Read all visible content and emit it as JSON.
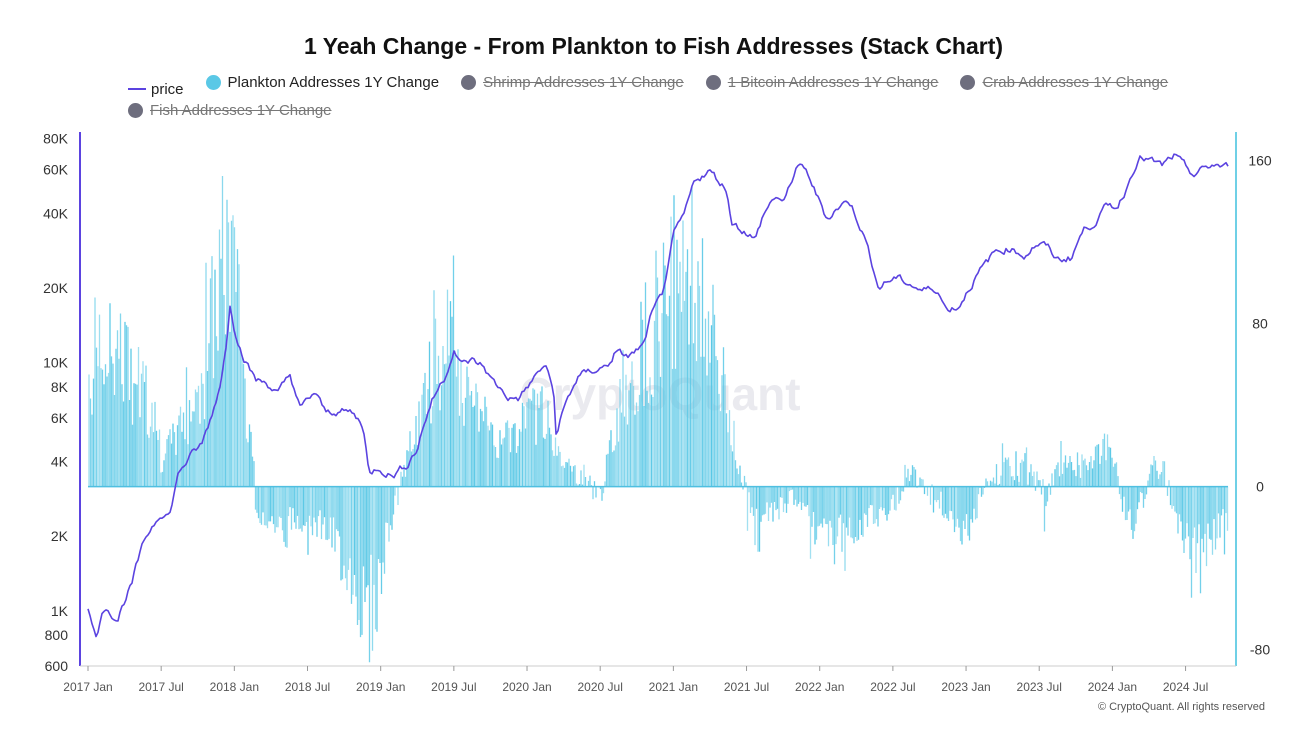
{
  "chart_data": {
    "type": "line",
    "title": "1 Yeah Change - From Plankton to Fish Addresses (Stack Chart)",
    "legend": [
      {
        "name": "price",
        "color": "#5b43e0",
        "marker": "line",
        "visible": true
      },
      {
        "name": "Plankton Addresses 1Y Change",
        "color": "#5ac8e6",
        "marker": "dot",
        "visible": true
      },
      {
        "name": "Shrimp Addresses 1Y Change",
        "color": "#6e6e7e",
        "marker": "dot",
        "visible": false
      },
      {
        "name": "1 Bitcoin Addresses 1Y Change",
        "color": "#6e6e7e",
        "marker": "dot",
        "visible": false
      },
      {
        "name": "Crab Addresses 1Y Change",
        "color": "#6e6e7e",
        "marker": "dot",
        "visible": false
      },
      {
        "name": "Fish Addresses 1Y Change",
        "color": "#6e6e7e",
        "marker": "dot",
        "visible": false
      }
    ],
    "x_ticks": [
      "2017 Jan",
      "2017 Jul",
      "2018 Jan",
      "2018 Jul",
      "2019 Jan",
      "2019 Jul",
      "2020 Jan",
      "2020 Jul",
      "2021 Jan",
      "2021 Jul",
      "2022 Jan",
      "2022 Jul",
      "2023 Jan",
      "2023 Jul",
      "2024 Jan",
      "2024 Jul"
    ],
    "x_range": [
      2017.0,
      2024.79
    ],
    "y_left": {
      "scale": "log",
      "range": [
        600,
        85000
      ],
      "ticks": [
        {
          "v": 600,
          "label": "600"
        },
        {
          "v": 800,
          "label": "800"
        },
        {
          "v": 1000,
          "label": "1K"
        },
        {
          "v": 2000,
          "label": "2K"
        },
        {
          "v": 4000,
          "label": "4K"
        },
        {
          "v": 6000,
          "label": "6K"
        },
        {
          "v": 8000,
          "label": "8K"
        },
        {
          "v": 10000,
          "label": "10K"
        },
        {
          "v": 20000,
          "label": "20K"
        },
        {
          "v": 40000,
          "label": "40K"
        },
        {
          "v": 60000,
          "label": "60K"
        },
        {
          "v": 80000,
          "label": "80K"
        }
      ]
    },
    "y_right": {
      "scale": "linear",
      "range": [
        -88,
        174
      ],
      "ticks": [
        {
          "v": -80,
          "label": "-80"
        },
        {
          "v": 0,
          "label": "0"
        },
        {
          "v": 80,
          "label": "80"
        },
        {
          "v": 160,
          "label": "160"
        }
      ]
    },
    "series": [
      {
        "name": "price",
        "axis": "left",
        "color": "#5b43e0",
        "points": [
          [
            2017.0,
            1000
          ],
          [
            2017.05,
            780
          ],
          [
            2017.12,
            1050
          ],
          [
            2017.2,
            920
          ],
          [
            2017.3,
            1280
          ],
          [
            2017.4,
            2000
          ],
          [
            2017.5,
            2500
          ],
          [
            2017.56,
            2450
          ],
          [
            2017.62,
            3600
          ],
          [
            2017.7,
            4200
          ],
          [
            2017.78,
            4700
          ],
          [
            2017.85,
            6200
          ],
          [
            2017.9,
            8000
          ],
          [
            2017.95,
            12000
          ],
          [
            2017.97,
            17500
          ],
          [
            2018.0,
            14000
          ],
          [
            2018.05,
            11000
          ],
          [
            2018.1,
            9500
          ],
          [
            2018.15,
            8500
          ],
          [
            2018.22,
            8300
          ],
          [
            2018.3,
            7500
          ],
          [
            2018.38,
            8900
          ],
          [
            2018.45,
            6500
          ],
          [
            2018.55,
            7600
          ],
          [
            2018.62,
            6300
          ],
          [
            2018.7,
            6400
          ],
          [
            2018.8,
            6300
          ],
          [
            2018.88,
            5600
          ],
          [
            2018.92,
            3500
          ],
          [
            2018.98,
            3800
          ],
          [
            2019.08,
            3500
          ],
          [
            2019.18,
            3900
          ],
          [
            2019.25,
            4500
          ],
          [
            2019.35,
            7000
          ],
          [
            2019.45,
            9000
          ],
          [
            2019.5,
            11500
          ],
          [
            2019.55,
            9800
          ],
          [
            2019.62,
            10200
          ],
          [
            2019.7,
            9700
          ],
          [
            2019.76,
            8500
          ],
          [
            2019.82,
            7800
          ],
          [
            2019.88,
            7200
          ],
          [
            2019.95,
            7200
          ],
          [
            2020.04,
            8500
          ],
          [
            2020.12,
            9800
          ],
          [
            2020.18,
            7800
          ],
          [
            2020.2,
            5000
          ],
          [
            2020.25,
            6500
          ],
          [
            2020.35,
            8800
          ],
          [
            2020.45,
            9300
          ],
          [
            2020.55,
            9700
          ],
          [
            2020.6,
            11000
          ],
          [
            2020.7,
            10600
          ],
          [
            2020.8,
            11800
          ],
          [
            2020.85,
            15500
          ],
          [
            2020.92,
            18500
          ],
          [
            2020.97,
            25000
          ],
          [
            2021.0,
            32000
          ],
          [
            2021.08,
            40000
          ],
          [
            2021.15,
            55000
          ],
          [
            2021.25,
            59000
          ],
          [
            2021.3,
            55000
          ],
          [
            2021.36,
            50000
          ],
          [
            2021.4,
            37000
          ],
          [
            2021.45,
            35000
          ],
          [
            2021.52,
            33000
          ],
          [
            2021.56,
            31000
          ],
          [
            2021.62,
            40000
          ],
          [
            2021.7,
            47000
          ],
          [
            2021.76,
            44000
          ],
          [
            2021.85,
            63000
          ],
          [
            2021.92,
            57000
          ],
          [
            2021.98,
            47000
          ],
          [
            2022.05,
            38000
          ],
          [
            2022.12,
            42000
          ],
          [
            2022.2,
            45000
          ],
          [
            2022.25,
            39000
          ],
          [
            2022.32,
            30000
          ],
          [
            2022.4,
            20000
          ],
          [
            2022.45,
            21000
          ],
          [
            2022.52,
            22000
          ],
          [
            2022.6,
            21000
          ],
          [
            2022.7,
            19500
          ],
          [
            2022.8,
            20000
          ],
          [
            2022.86,
            16500
          ],
          [
            2022.95,
            16800
          ],
          [
            2023.02,
            20000
          ],
          [
            2023.1,
            23500
          ],
          [
            2023.2,
            28000
          ],
          [
            2023.3,
            29000
          ],
          [
            2023.4,
            27000
          ],
          [
            2023.48,
            30000
          ],
          [
            2023.55,
            29500
          ],
          [
            2023.62,
            26000
          ],
          [
            2023.72,
            26500
          ],
          [
            2023.8,
            34000
          ],
          [
            2023.88,
            37000
          ],
          [
            2023.96,
            42500
          ],
          [
            2024.04,
            43000
          ],
          [
            2024.1,
            51000
          ],
          [
            2024.18,
            68000
          ],
          [
            2024.26,
            65000
          ],
          [
            2024.34,
            62000
          ],
          [
            2024.42,
            68000
          ],
          [
            2024.5,
            61000
          ],
          [
            2024.56,
            57000
          ],
          [
            2024.62,
            60000
          ],
          [
            2024.7,
            63000
          ],
          [
            2024.76,
            61000
          ],
          [
            2024.79,
            62000
          ]
        ]
      },
      {
        "name": "Plankton Addresses 1Y Change",
        "axis": "right",
        "color": "#5ac8e6",
        "points": [
          [
            2017.0,
            55
          ],
          [
            2017.1,
            62
          ],
          [
            2017.2,
            68
          ],
          [
            2017.3,
            55
          ],
          [
            2017.4,
            45
          ],
          [
            2017.5,
            12
          ],
          [
            2017.6,
            25
          ],
          [
            2017.7,
            38
          ],
          [
            2017.8,
            58
          ],
          [
            2017.85,
            82
          ],
          [
            2017.92,
            108
          ],
          [
            2017.96,
            118
          ],
          [
            2018.0,
            95
          ],
          [
            2018.08,
            45
          ],
          [
            2018.15,
            -10
          ],
          [
            2018.3,
            -20
          ],
          [
            2018.45,
            -15
          ],
          [
            2018.6,
            -18
          ],
          [
            2018.75,
            -35
          ],
          [
            2018.9,
            -62
          ],
          [
            2018.97,
            -55
          ],
          [
            2019.05,
            -22
          ],
          [
            2019.15,
            5
          ],
          [
            2019.25,
            30
          ],
          [
            2019.35,
            55
          ],
          [
            2019.45,
            70
          ],
          [
            2019.55,
            45
          ],
          [
            2019.65,
            38
          ],
          [
            2019.75,
            28
          ],
          [
            2019.85,
            22
          ],
          [
            2020.0,
            30
          ],
          [
            2020.1,
            40
          ],
          [
            2020.18,
            22
          ],
          [
            2020.3,
            8
          ],
          [
            2020.4,
            5
          ],
          [
            2020.5,
            -5
          ],
          [
            2020.58,
            22
          ],
          [
            2020.65,
            48
          ],
          [
            2020.75,
            60
          ],
          [
            2020.85,
            78
          ],
          [
            2020.95,
            95
          ],
          [
            2021.05,
            110
          ],
          [
            2021.15,
            100
          ],
          [
            2021.25,
            78
          ],
          [
            2021.35,
            45
          ],
          [
            2021.45,
            10
          ],
          [
            2021.55,
            -15
          ],
          [
            2021.7,
            -12
          ],
          [
            2021.85,
            -2
          ],
          [
            2021.95,
            -18
          ],
          [
            2022.05,
            -28
          ],
          [
            2022.2,
            -22
          ],
          [
            2022.35,
            -15
          ],
          [
            2022.5,
            -10
          ],
          [
            2022.6,
            8
          ],
          [
            2022.7,
            4
          ],
          [
            2022.8,
            -5
          ],
          [
            2022.9,
            -14
          ],
          [
            2023.0,
            -22
          ],
          [
            2023.1,
            -6
          ],
          [
            2023.2,
            5
          ],
          [
            2023.3,
            10
          ],
          [
            2023.45,
            5
          ],
          [
            2023.55,
            -5
          ],
          [
            2023.65,
            12
          ],
          [
            2023.8,
            10
          ],
          [
            2023.9,
            18
          ],
          [
            2024.0,
            20
          ],
          [
            2024.05,
            -5
          ],
          [
            2024.15,
            -18
          ],
          [
            2024.25,
            5
          ],
          [
            2024.35,
            10
          ],
          [
            2024.45,
            -22
          ],
          [
            2024.55,
            -30
          ],
          [
            2024.65,
            -28
          ],
          [
            2024.75,
            -20
          ],
          [
            2024.79,
            -18
          ]
        ]
      }
    ]
  },
  "watermark": "CryptoQuant",
  "copyright": "© CryptoQuant. All rights reserved"
}
